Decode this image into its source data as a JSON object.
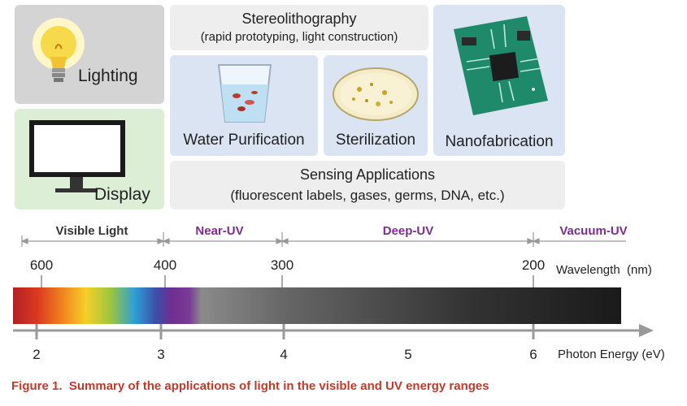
{
  "tiles": {
    "lighting": "Lighting",
    "display": "Display",
    "stereo_title": "Stereolithography",
    "stereo_sub": "(rapid prototyping, light construction)",
    "water": "Water Purification",
    "sterilization": "Sterilization",
    "nanofab": "Nanofabrication",
    "sensing_title": "Sensing Applications",
    "sensing_sub": "(fluorescent labels, gases, germs, DNA, etc.)"
  },
  "regions": [
    "Visible Light",
    "Near-UV",
    "Deep-UV",
    "Vacuum-UV"
  ],
  "wavelength": {
    "ticks": [
      "600",
      "400",
      "300",
      "200"
    ],
    "label": "Wavelength  (nm)"
  },
  "energy": {
    "ticks": [
      "2",
      "3",
      "4",
      "5",
      "6"
    ],
    "label": "Photon Energy (eV)"
  },
  "caption": "Figure 1.  Summary of the applications of light in the visible and UV energy ranges",
  "colors": {
    "tile_gray": "#d4d4d4",
    "tile_green": "#dcefd6",
    "tile_blue": "#dbe4f2",
    "tile_light": "#eeeeee",
    "region_purple": "#7a2e8c",
    "caption_red": "#c0392b"
  }
}
